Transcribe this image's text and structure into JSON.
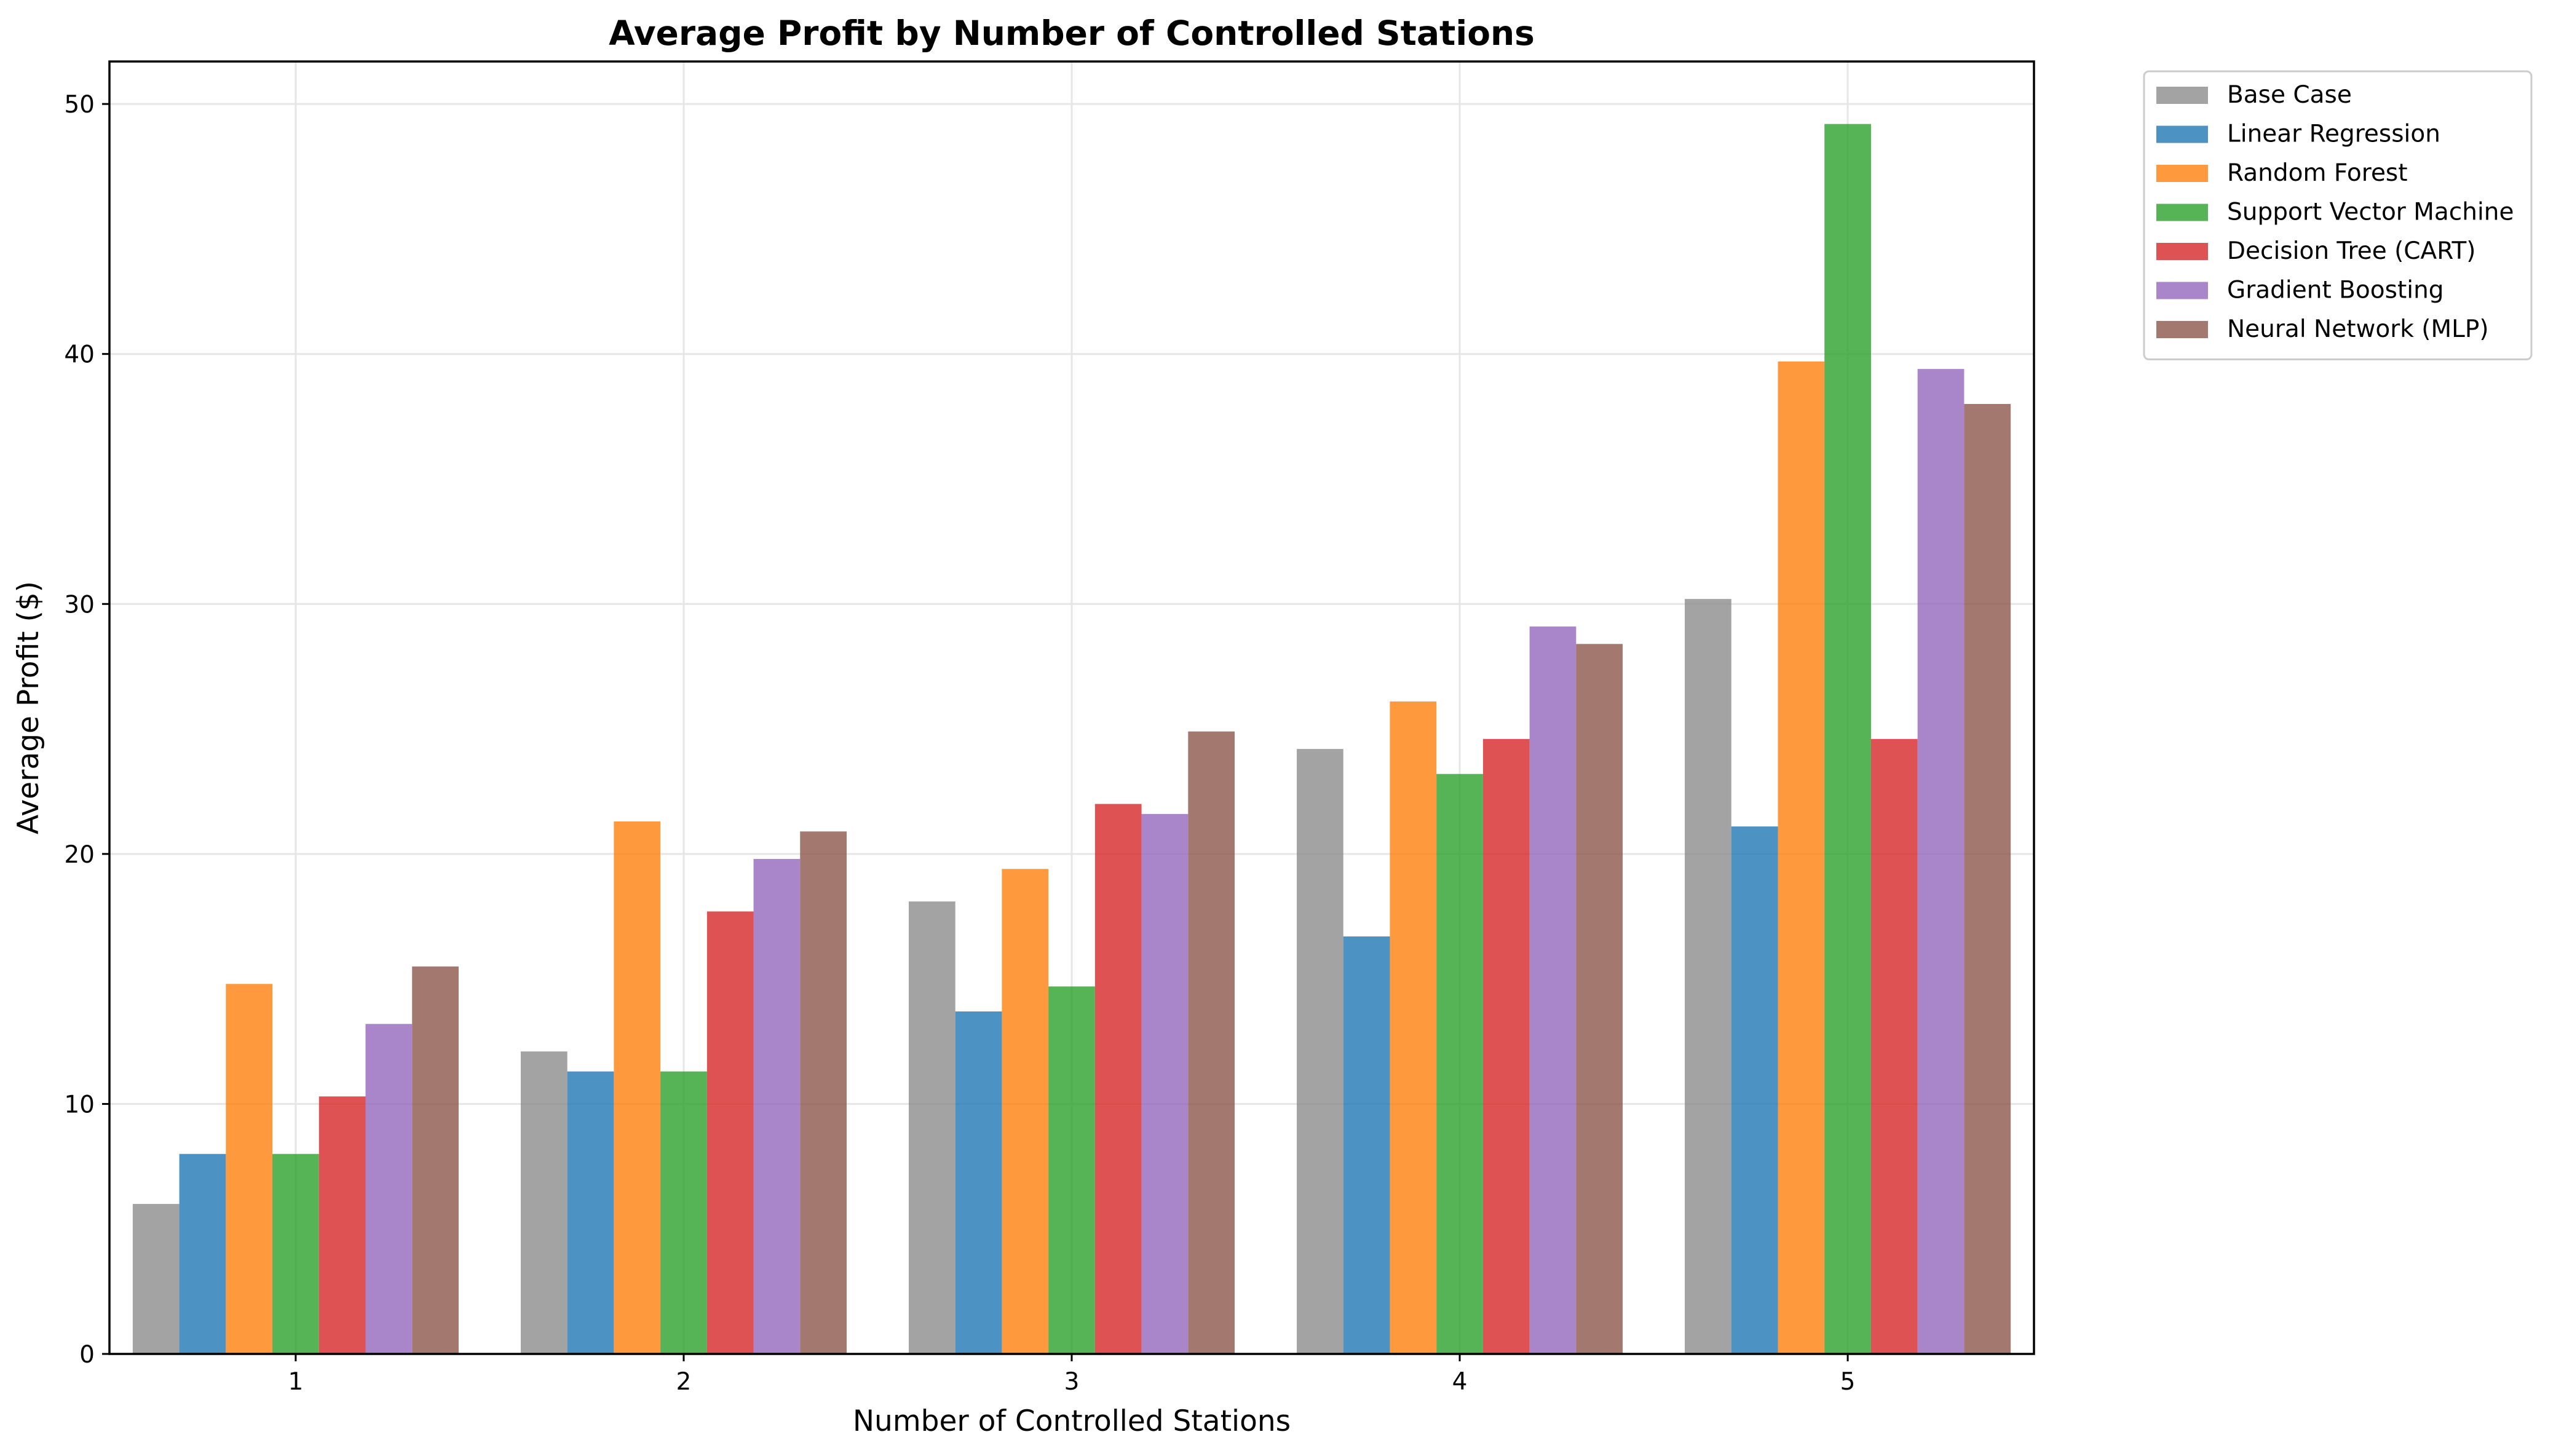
{
  "chart_data": {
    "type": "bar",
    "title": "Average Profit by Number of Controlled Stations",
    "xlabel": "Number of Controlled Stations",
    "ylabel": "Average Profit ($)",
    "categories": [
      "1",
      "2",
      "3",
      "4",
      "5"
    ],
    "ylim": [
      0,
      51.7
    ],
    "yticks": [
      0,
      10,
      20,
      30,
      40,
      50
    ],
    "grid": true,
    "legend_position": "outside-top-right",
    "series": [
      {
        "name": "Base Case",
        "color": "#8c8c8c",
        "values": [
          6.0,
          12.1,
          18.1,
          24.2,
          30.2
        ]
      },
      {
        "name": "Linear Regression",
        "color": "#1f77b4",
        "values": [
          8.0,
          11.3,
          13.7,
          16.7,
          21.1
        ]
      },
      {
        "name": "Random Forest",
        "color": "#ff7f0e",
        "values": [
          14.8,
          21.3,
          19.4,
          26.1,
          39.7
        ]
      },
      {
        "name": "Support Vector Machine",
        "color": "#2ca02c",
        "values": [
          8.0,
          11.3,
          14.7,
          23.2,
          49.2
        ]
      },
      {
        "name": "Decision Tree (CART)",
        "color": "#d62728",
        "values": [
          10.3,
          17.7,
          22.0,
          24.6,
          24.6
        ]
      },
      {
        "name": "Gradient Boosting",
        "color": "#9467bd",
        "values": [
          13.2,
          19.8,
          21.6,
          29.1,
          39.4
        ]
      },
      {
        "name": "Neural Network (MLP)",
        "color": "#8c564b",
        "values": [
          15.5,
          20.9,
          24.9,
          28.4,
          38.0
        ]
      }
    ]
  }
}
